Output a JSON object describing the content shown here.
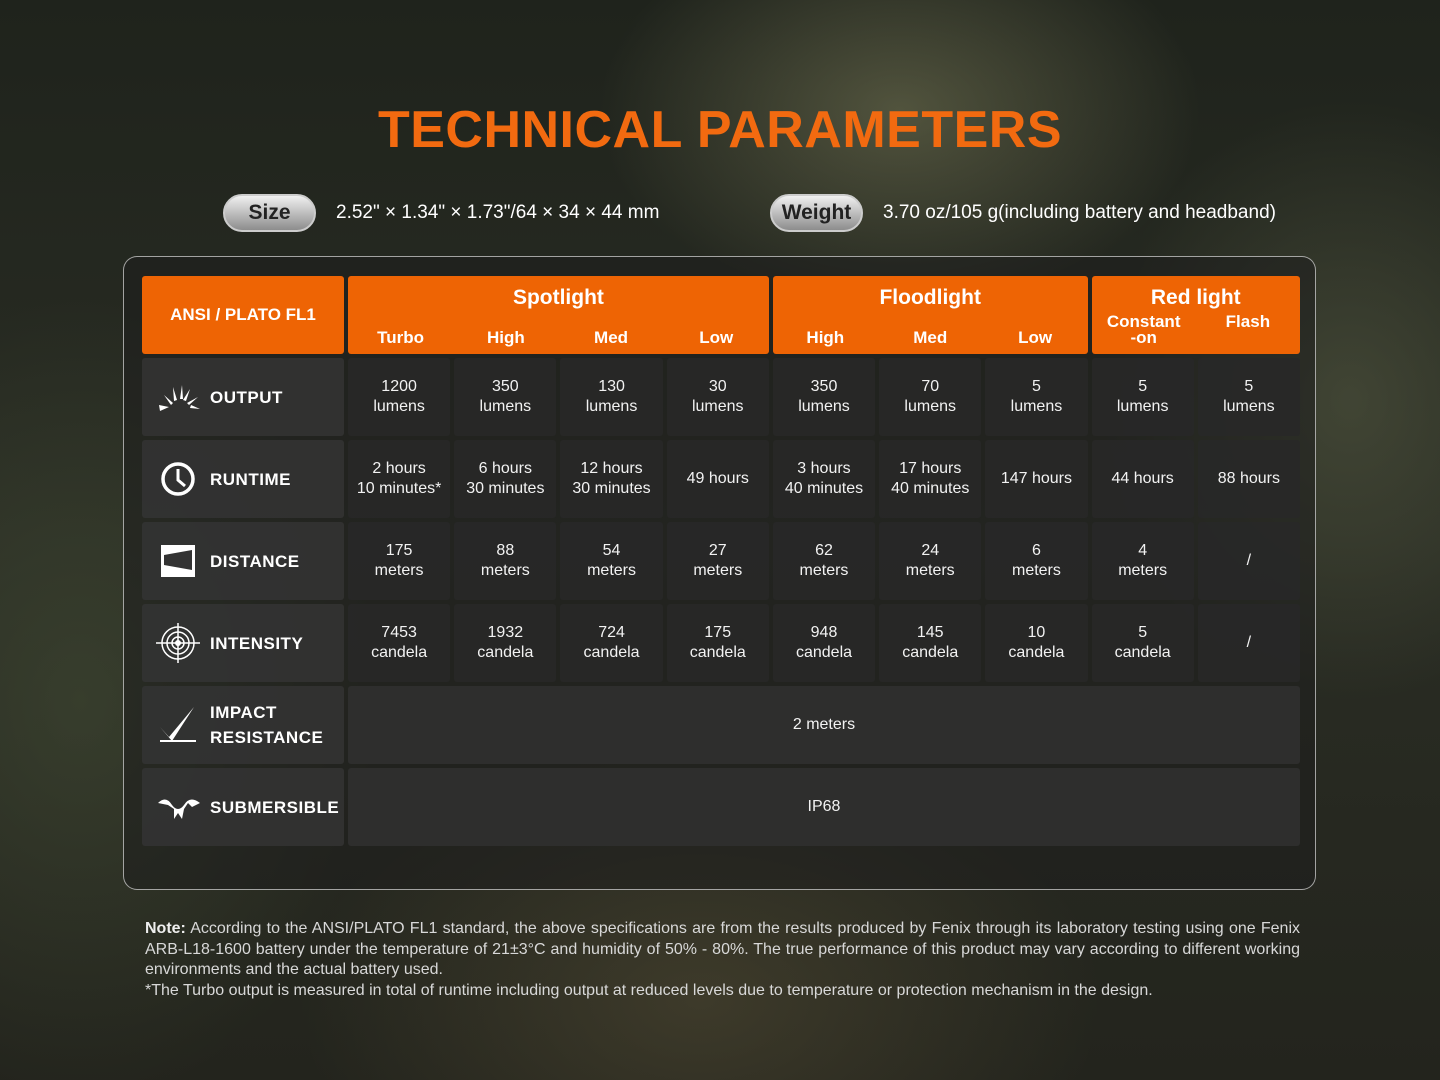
{
  "title": "TECHNICAL PARAMETERS",
  "size": {
    "label": "Size",
    "value": "2.52\" × 1.34\" × 1.73\"/64 × 34 × 44 mm"
  },
  "weight": {
    "label": "Weight",
    "value": "3.70 oz/105 g(including battery and headband)"
  },
  "table": {
    "corner": "ANSI / PLATO FL1",
    "groups": [
      {
        "name": "Spotlight",
        "modes": [
          "Turbo",
          "High",
          "Med",
          "Low"
        ]
      },
      {
        "name": "Floodlight",
        "modes": [
          "High",
          "Med",
          "Low"
        ]
      },
      {
        "name": "Red light",
        "modes": [
          "Constant\n-on",
          "Flash"
        ]
      }
    ],
    "rows": [
      {
        "icon": "sunburst-icon",
        "label": "OUTPUT",
        "values": [
          "1200\nlumens",
          "350\nlumens",
          "130\nlumens",
          "30\nlumens",
          "350\nlumens",
          "70\nlumens",
          "5\nlumens",
          "5\nlumens",
          "5\nlumens"
        ]
      },
      {
        "icon": "clock-icon",
        "label": "RUNTIME",
        "values": [
          "2 hours\n10 minutes*",
          "6 hours\n30 minutes",
          "12 hours\n30 minutes",
          "49 hours",
          "3 hours\n40 minutes",
          "17 hours\n40 minutes",
          "147 hours",
          "44 hours",
          "88 hours"
        ]
      },
      {
        "icon": "distance-beam-icon",
        "label": "DISTANCE",
        "values": [
          "175\nmeters",
          "88\nmeters",
          "54\nmeters",
          "27\nmeters",
          "62\nmeters",
          "24\nmeters",
          "6\nmeters",
          "4\nmeters",
          "/"
        ]
      },
      {
        "icon": "target-icon",
        "label": "INTENSITY",
        "values": [
          "7453\ncandela",
          "1932\ncandela",
          "724\ncandela",
          "175\ncandela",
          "948\ncandela",
          "145\ncandela",
          "10\ncandela",
          "5\ncandela",
          "/"
        ]
      },
      {
        "icon": "impact-check-icon",
        "label": "IMPACT\nRESISTANCE",
        "span": "2 meters"
      },
      {
        "icon": "submersible-icon",
        "label": "SUBMERSIBLE",
        "span": "IP68"
      }
    ]
  },
  "note": {
    "bold": "Note:",
    "text": " According to the ANSI/PLATO FL1 standard, the above specifications are from the results produced by Fenix through its laboratory testing using one Fenix ARB-L18-1600 battery under the temperature of 21±3°C and humidity of 50% - 80%. The true performance of this product may vary according to different working environments and the actual battery used.",
    "footnote": "*The Turbo output is measured in total of runtime including output at reduced levels due to temperature or protection mechanism in the design."
  },
  "colors": {
    "accent": "#ee6404",
    "title": "#f26a10"
  }
}
